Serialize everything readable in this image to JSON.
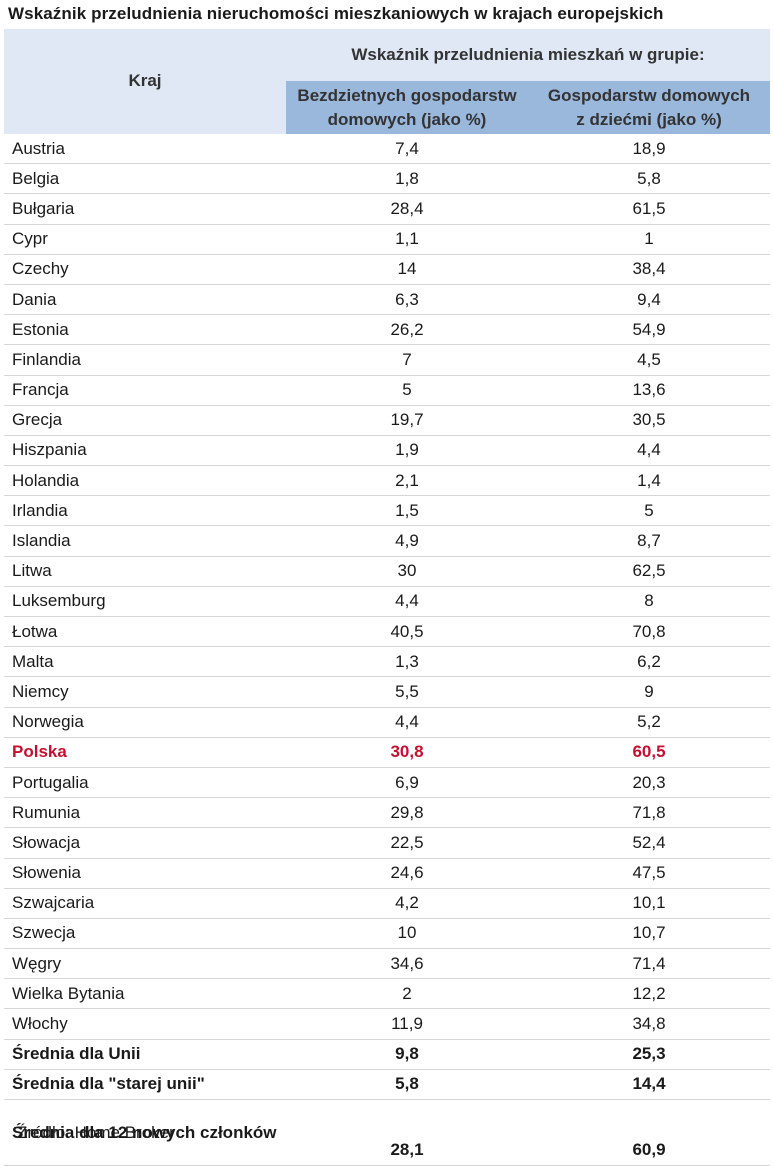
{
  "chart_data": {
    "type": "table",
    "title": "Wskaźnik przeludnienia nieruchomości mieszkaniowych w krajach europejskich",
    "header": {
      "country": "Kraj",
      "group": "Wskaźnik przeludnienia mieszkań w grupie:",
      "col1_line1": "Bezdzietnych gospodarstw",
      "col1_line2": "domowych (jako %)",
      "col2_line1": "Gospodarstw domowych",
      "col2_line2": "z dziećmi (jako %)"
    },
    "rows": [
      {
        "country": "Austria",
        "childless": "7,4",
        "with_children": "18,9"
      },
      {
        "country": "Belgia",
        "childless": "1,8",
        "with_children": "5,8"
      },
      {
        "country": "Bułgaria",
        "childless": "28,4",
        "with_children": "61,5"
      },
      {
        "country": "Cypr",
        "childless": "1,1",
        "with_children": "1"
      },
      {
        "country": "Czechy",
        "childless": "14",
        "with_children": "38,4"
      },
      {
        "country": "Dania",
        "childless": "6,3",
        "with_children": "9,4"
      },
      {
        "country": "Estonia",
        "childless": "26,2",
        "with_children": "54,9"
      },
      {
        "country": "Finlandia",
        "childless": "7",
        "with_children": "4,5"
      },
      {
        "country": "Francja",
        "childless": "5",
        "with_children": "13,6"
      },
      {
        "country": "Grecja",
        "childless": "19,7",
        "with_children": "30,5"
      },
      {
        "country": "Hiszpania",
        "childless": "1,9",
        "with_children": "4,4"
      },
      {
        "country": "Holandia",
        "childless": "2,1",
        "with_children": "1,4"
      },
      {
        "country": "Irlandia",
        "childless": "1,5",
        "with_children": "5"
      },
      {
        "country": "Islandia",
        "childless": "4,9",
        "with_children": "8,7"
      },
      {
        "country": "Litwa",
        "childless": "30",
        "with_children": "62,5"
      },
      {
        "country": "Luksemburg",
        "childless": "4,4",
        "with_children": "8"
      },
      {
        "country": "Łotwa",
        "childless": "40,5",
        "with_children": "70,8"
      },
      {
        "country": "Malta",
        "childless": "1,3",
        "with_children": "6,2"
      },
      {
        "country": "Niemcy",
        "childless": "5,5",
        "with_children": "9"
      },
      {
        "country": "Norwegia",
        "childless": "4,4",
        "with_children": "5,2"
      },
      {
        "country": "Polska",
        "childless": "30,8",
        "with_children": "60,5",
        "highlight": true
      },
      {
        "country": "Portugalia",
        "childless": "6,9",
        "with_children": "20,3"
      },
      {
        "country": "Rumunia",
        "childless": "29,8",
        "with_children": "71,8"
      },
      {
        "country": "Słowacja",
        "childless": "22,5",
        "with_children": "52,4"
      },
      {
        "country": "Słowenia",
        "childless": "24,6",
        "with_children": "47,5"
      },
      {
        "country": "Szwajcaria",
        "childless": "4,2",
        "with_children": "10,1"
      },
      {
        "country": "Szwecja",
        "childless": "10",
        "with_children": "10,7"
      },
      {
        "country": "Węgry",
        "childless": "34,6",
        "with_children": "71,4"
      },
      {
        "country": "Wielka Bytania",
        "childless": "2",
        "with_children": "12,2"
      },
      {
        "country": "Włochy",
        "childless": "11,9",
        "with_children": "34,8"
      },
      {
        "country": "Średnia dla Unii",
        "childless": "9,8",
        "with_children": "25,3",
        "summary": true
      },
      {
        "country": "Średnia dla \"starej unii\"",
        "childless": "5,8",
        "with_children": "14,4",
        "summary": true
      },
      {
        "country": "Średnia dla 12 nowych członków",
        "childless": "28,1",
        "with_children": "60,9",
        "summary": true,
        "tall": true
      }
    ],
    "highlight_color": "#c8102e"
  },
  "source": "Źródło: Home Broker",
  "colors": {
    "header_light": "#dfe8f4",
    "header_dark": "#9ab7dc",
    "row_border": "#d6d6d6"
  }
}
